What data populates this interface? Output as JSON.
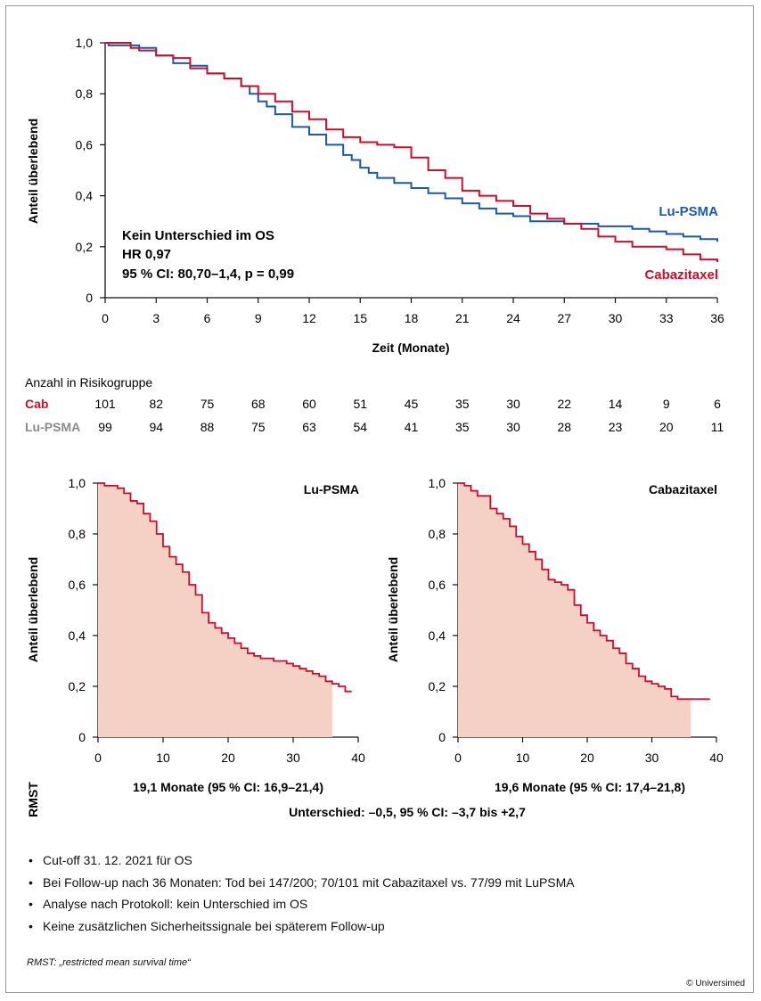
{
  "chart_data": [
    {
      "type": "line",
      "title": "",
      "xlabel": "Zeit (Monate)",
      "ylabel": "Anteil überlebend",
      "xlim": [
        0,
        36
      ],
      "ylim": [
        0,
        1.0
      ],
      "xticks": [
        "0",
        "3",
        "6",
        "9",
        "12",
        "15",
        "18",
        "21",
        "24",
        "27",
        "30",
        "33",
        "36"
      ],
      "yticks": [
        "0",
        "0,2",
        "0,4",
        "0,6",
        "0,8",
        "1,0"
      ],
      "grid": false,
      "legend": "direct labels at right",
      "annotation": [
        "Kein Unterschied im OS",
        "HR 0,97",
        "95 % CI: 80,70–1,4, p = 0,99"
      ],
      "series": [
        {
          "name": "Lu-PSMA",
          "color": "#1a5aa8",
          "x": [
            0,
            0.2,
            2,
            3,
            4,
            5,
            6,
            7,
            8,
            8.5,
            9,
            9.5,
            10,
            11,
            12,
            13,
            14,
            14.5,
            15,
            15.5,
            16,
            17,
            18,
            19,
            20,
            21,
            22,
            23,
            24,
            25,
            26,
            27,
            28,
            29,
            30,
            31,
            32,
            33,
            34,
            35,
            36
          ],
          "y": [
            1.0,
            0.99,
            0.98,
            0.95,
            0.92,
            0.91,
            0.88,
            0.86,
            0.83,
            0.8,
            0.77,
            0.75,
            0.72,
            0.67,
            0.64,
            0.6,
            0.56,
            0.54,
            0.51,
            0.49,
            0.47,
            0.45,
            0.43,
            0.41,
            0.39,
            0.37,
            0.35,
            0.33,
            0.32,
            0.3,
            0.3,
            0.29,
            0.29,
            0.28,
            0.28,
            0.27,
            0.26,
            0.25,
            0.24,
            0.23,
            0.22
          ]
        },
        {
          "name": "Cabazitaxel",
          "color": "#c8102e",
          "x": [
            0,
            1.5,
            2,
            3,
            4,
            5,
            6,
            7,
            8,
            9,
            10,
            11,
            12,
            13,
            14,
            15,
            16,
            17,
            18,
            19,
            20,
            21,
            22,
            23,
            24,
            25,
            26,
            27,
            28,
            29,
            30,
            31,
            32,
            33,
            34,
            35,
            36
          ],
          "y": [
            1.0,
            0.98,
            0.97,
            0.95,
            0.94,
            0.9,
            0.88,
            0.86,
            0.83,
            0.8,
            0.77,
            0.73,
            0.7,
            0.66,
            0.63,
            0.61,
            0.6,
            0.59,
            0.55,
            0.5,
            0.47,
            0.42,
            0.4,
            0.38,
            0.36,
            0.33,
            0.31,
            0.29,
            0.27,
            0.24,
            0.22,
            0.2,
            0.2,
            0.19,
            0.17,
            0.15,
            0.14
          ]
        }
      ]
    },
    {
      "type": "area",
      "title": "Lu-PSMA",
      "xlabel": "",
      "ylabel": "Anteil überlebend",
      "xlim": [
        0,
        40
      ],
      "ylim": [
        0,
        1.0
      ],
      "xticks": [
        "0",
        "10",
        "20",
        "30",
        "40"
      ],
      "yticks": [
        "0",
        "0,2",
        "0,4",
        "0,6",
        "0,8",
        "1,0"
      ],
      "shade_until": 36,
      "series": [
        {
          "x": [
            0,
            1,
            3,
            4,
            5,
            6,
            7,
            8,
            9,
            10,
            11,
            12,
            13,
            14,
            15,
            16,
            17,
            18,
            19,
            20,
            21,
            22,
            23,
            24,
            25,
            26,
            27,
            28,
            29,
            30,
            31,
            32,
            33,
            34,
            35,
            36,
            37,
            38,
            39
          ],
          "y": [
            1.0,
            0.99,
            0.98,
            0.96,
            0.93,
            0.92,
            0.88,
            0.85,
            0.8,
            0.75,
            0.71,
            0.68,
            0.65,
            0.6,
            0.56,
            0.49,
            0.45,
            0.43,
            0.41,
            0.39,
            0.37,
            0.35,
            0.33,
            0.32,
            0.31,
            0.31,
            0.3,
            0.3,
            0.29,
            0.28,
            0.27,
            0.26,
            0.25,
            0.24,
            0.22,
            0.21,
            0.2,
            0.18,
            0.18
          ]
        }
      ]
    },
    {
      "type": "area",
      "title": "Cabazitaxel",
      "xlabel": "",
      "ylabel": "Anteil überlebend",
      "xlim": [
        0,
        40
      ],
      "ylim": [
        0,
        1.0
      ],
      "xticks": [
        "0",
        "10",
        "20",
        "30",
        "40"
      ],
      "yticks": [
        "0",
        "0,2",
        "0,4",
        "0,6",
        "0,8",
        "1,0"
      ],
      "shade_until": 36,
      "series": [
        {
          "x": [
            0,
            1,
            2,
            3,
            4,
            5,
            6,
            7,
            8,
            9,
            10,
            11,
            12,
            13,
            14,
            15,
            16,
            17,
            18,
            19,
            20,
            21,
            22,
            23,
            24,
            25,
            26,
            27,
            28,
            29,
            30,
            31,
            32,
            33,
            34,
            35,
            36,
            37,
            38,
            39
          ],
          "y": [
            1.0,
            0.99,
            0.97,
            0.95,
            0.95,
            0.9,
            0.88,
            0.86,
            0.83,
            0.79,
            0.76,
            0.73,
            0.7,
            0.66,
            0.62,
            0.61,
            0.6,
            0.58,
            0.52,
            0.48,
            0.45,
            0.42,
            0.4,
            0.38,
            0.35,
            0.33,
            0.29,
            0.27,
            0.24,
            0.22,
            0.21,
            0.2,
            0.19,
            0.16,
            0.15,
            0.15,
            0.15,
            0.15,
            0.15,
            0.15
          ]
        }
      ]
    }
  ],
  "risk_table": {
    "title": "Anzahl in Risikogruppe",
    "rows": [
      {
        "label": "Cab",
        "color": "#c8102e",
        "values": [
          "101",
          "82",
          "75",
          "68",
          "60",
          "51",
          "45",
          "35",
          "30",
          "22",
          "14",
          "9",
          "6"
        ]
      },
      {
        "label": "Lu-PSMA",
        "color": "#8a8a8a",
        "values": [
          "99",
          "94",
          "88",
          "75",
          "63",
          "54",
          "41",
          "35",
          "30",
          "28",
          "23",
          "20",
          "11"
        ]
      }
    ]
  },
  "rmst": {
    "label": "RMST",
    "lu": "19,1 Monate (95 % CI: 16,9–21,4)",
    "cab": "19,6 Monate (95 % CI: 17,4–21,8)",
    "difference": "Unterschied: –0,5, 95 % CI: –3,7 bis +2,7"
  },
  "notes": [
    "Cut-off 31. 12. 2021 für OS",
    "Bei Follow-up nach 36 Monaten: Tod bei 147/200; 70/101 mit Cabazitaxel vs. 77/99 mit LuPSMA",
    "Analyse nach Protokoll: kein Unterschied im OS",
    "Keine zusätzlichen Sicherheitssignale bei späterem Follow-up"
  ],
  "footnote": "RMST: „restricted mean survival time“",
  "copyright": "© Universimed",
  "colors": {
    "lu": "#1a5aa8",
    "cab": "#c8102e",
    "fill": "#f5d0c4",
    "axis": "#111111"
  }
}
